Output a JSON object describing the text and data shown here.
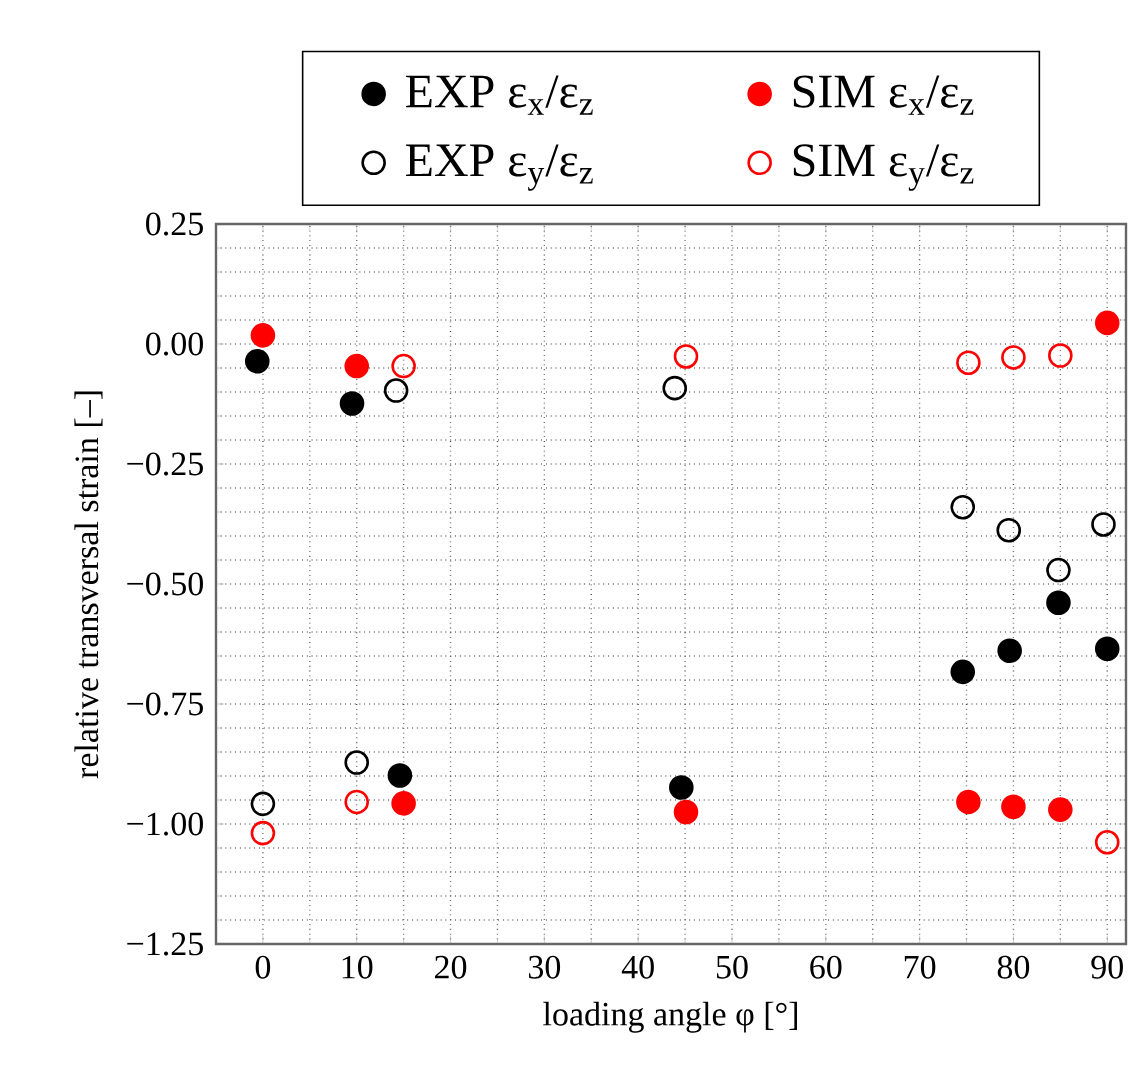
{
  "chart_data": {
    "type": "scatter",
    "xlabel": "loading angle φ [°]",
    "ylabel": "relative transversal strain [–]",
    "xlim": [
      -5,
      92
    ],
    "ylim": [
      -1.25,
      0.25
    ],
    "xticks": [
      0,
      10,
      20,
      30,
      40,
      50,
      60,
      70,
      80,
      90
    ],
    "yticks": [
      {
        "value": 0.25,
        "label": "0.25"
      },
      {
        "value": 0,
        "label": "0.00"
      },
      {
        "value": -0.25,
        "label": "−0.25"
      },
      {
        "value": -0.5,
        "label": "−0.50"
      },
      {
        "value": -0.75,
        "label": "−0.75"
      },
      {
        "value": -1.0,
        "label": "−1.00"
      },
      {
        "value": -1.25,
        "label": "−1.25"
      }
    ],
    "grid": true,
    "legend": "top",
    "series": [
      {
        "name": "EXP ε$_{x}$/ε$_{z}$",
        "color": "#000000",
        "marker": "circle",
        "x": [
          -0.6,
          9.5,
          14.6,
          44.6,
          74.6,
          79.6,
          84.8,
          90
        ],
        "values": [
          -0.036,
          -0.124,
          -0.899,
          -0.924,
          -0.683,
          -0.639,
          -0.539,
          -0.635
        ]
      },
      {
        "name": "EXP ε$_{y}$/ε$_{z}$",
        "color": "#000000",
        "marker": "circle-open",
        "x": [
          0,
          10,
          14.2,
          43.9,
          74.6,
          79.5,
          84.8,
          89.6
        ],
        "values": [
          -0.958,
          -0.872,
          -0.097,
          -0.092,
          -0.34,
          -0.388,
          -0.471,
          -0.376
        ]
      },
      {
        "name": "SIM ε$_{x}$/ε$_{z}$",
        "color": "#ff0000",
        "marker": "circle",
        "x": [
          0,
          10,
          15,
          45.1,
          75.2,
          80,
          85,
          90
        ],
        "values": [
          0.018,
          -0.046,
          -0.957,
          -0.975,
          -0.954,
          -0.964,
          -0.97,
          0.044
        ]
      },
      {
        "name": "SIM ε$_{y}$/ε$_{z}$",
        "color": "#ff0000",
        "marker": "circle-open",
        "x": [
          0,
          10,
          15,
          45.1,
          75.2,
          80,
          85,
          90
        ],
        "values": [
          -1.019,
          -0.954,
          -0.046,
          -0.026,
          -0.039,
          -0.028,
          -0.024,
          -1.038
        ]
      }
    ]
  }
}
